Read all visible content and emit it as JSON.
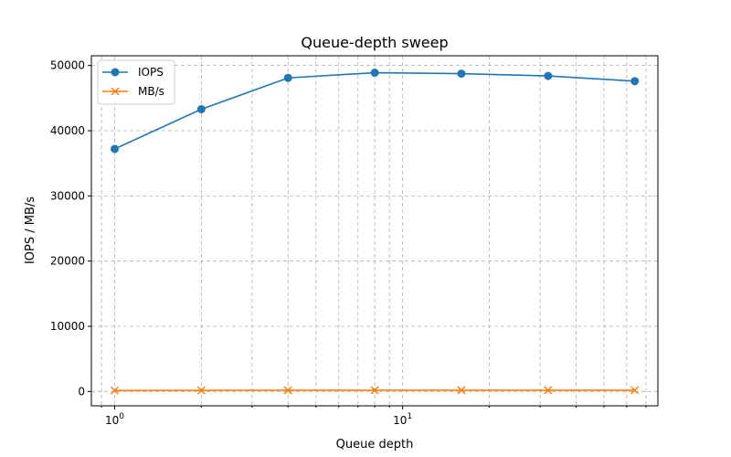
{
  "chart_data": {
    "type": "line",
    "title": "Queue-depth sweep",
    "xlabel": "Queue depth",
    "ylabel": "IOPS / MB/s",
    "x_scale": "log",
    "x": [
      1,
      2,
      4,
      8,
      16,
      32,
      64
    ],
    "xlim": [
      0.83,
      77
    ],
    "ylim": [
      -2200,
      51500
    ],
    "x_tick_labels": [
      {
        "value": 1,
        "base": "10",
        "exp": "0"
      },
      {
        "value": 10,
        "base": "10",
        "exp": "1"
      }
    ],
    "y_ticks": [
      0,
      10000,
      20000,
      30000,
      40000,
      50000
    ],
    "y_tick_labels": [
      "0",
      "10000",
      "20000",
      "30000",
      "40000",
      "50000"
    ],
    "grid": true,
    "legend_position": "top-left",
    "series": [
      {
        "name": "IOPS",
        "color": "#1f77b4",
        "marker": "circle",
        "values": [
          37200,
          43300,
          48100,
          48900,
          48750,
          48400,
          47600
        ]
      },
      {
        "name": "MB/s",
        "color": "#ff7f0e",
        "marker": "x",
        "values": [
          145,
          169,
          188,
          191,
          190,
          189,
          186
        ]
      }
    ]
  }
}
